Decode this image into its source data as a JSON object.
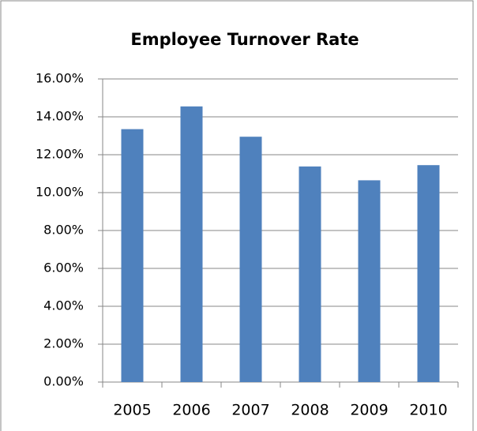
{
  "chart_data": {
    "type": "bar",
    "title": "Employee Turnover Rate",
    "categories": [
      "2005",
      "2006",
      "2007",
      "2008",
      "2009",
      "2010"
    ],
    "values": [
      13.35,
      14.55,
      12.95,
      11.38,
      10.65,
      11.45
    ],
    "color": "#4f81bd",
    "ylim": [
      0,
      16
    ],
    "yticks": [
      {
        "value": 0,
        "label": "0.00%"
      },
      {
        "value": 2,
        "label": "2.00%"
      },
      {
        "value": 4,
        "label": "4.00%"
      },
      {
        "value": 6,
        "label": "6.00%"
      },
      {
        "value": 8,
        "label": "8.00%"
      },
      {
        "value": 10,
        "label": "10.00%"
      },
      {
        "value": 12,
        "label": "12.00%"
      },
      {
        "value": 14,
        "label": "14.00%"
      },
      {
        "value": 16,
        "label": "16.00%"
      }
    ],
    "grid": true
  }
}
